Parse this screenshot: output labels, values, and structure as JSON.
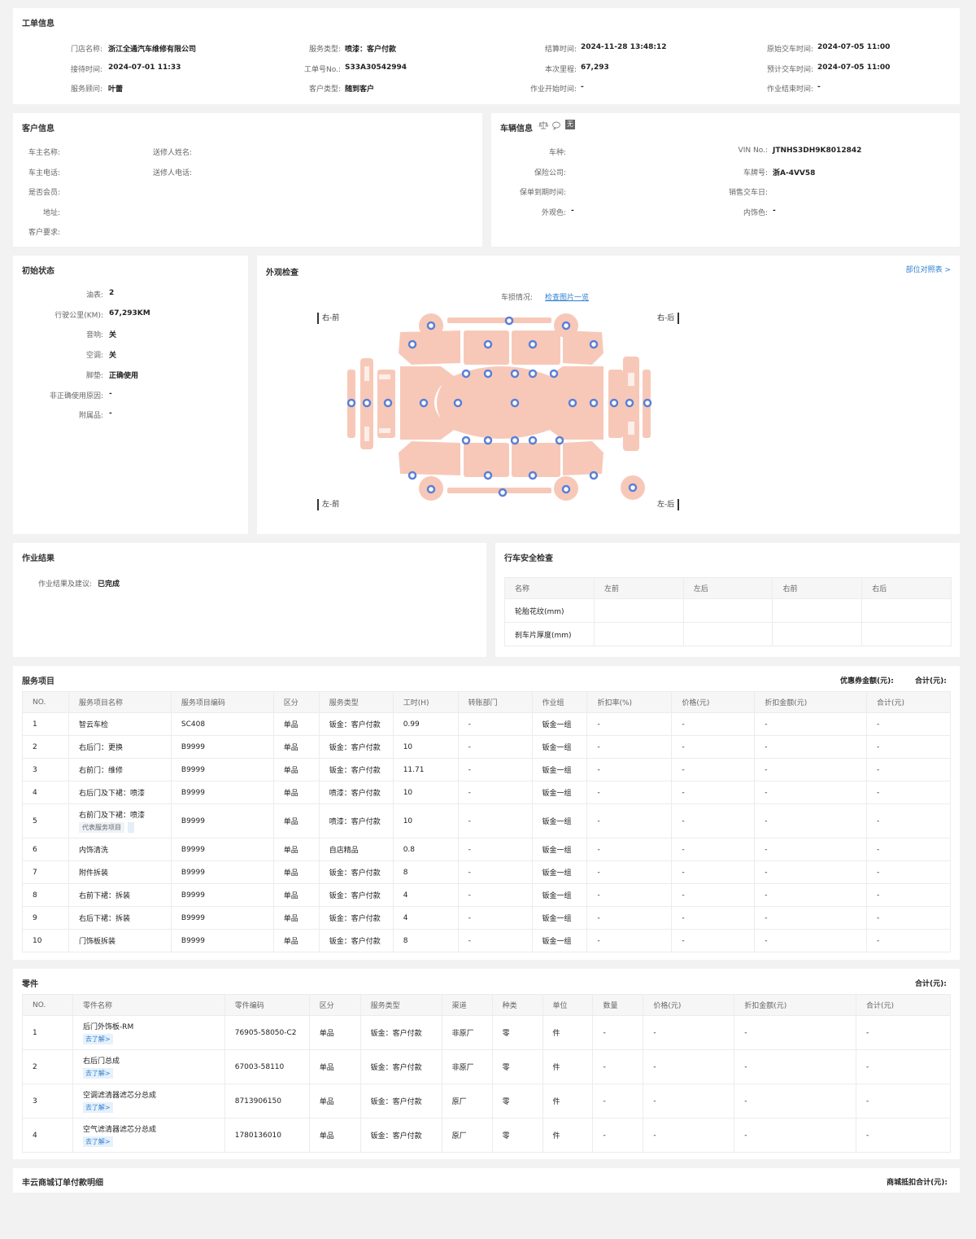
{
  "order": {
    "title": "工单信息",
    "fields": [
      {
        "label": "门店名称:",
        "value": "浙江全通汽车维修有限公司"
      },
      {
        "label": "服务类型:",
        "value": "喷漆：客户付款"
      },
      {
        "label": "结算时间:",
        "value": "2024-11-28 13:48:12"
      },
      {
        "label": "原始交车时间:",
        "value": "2024-07-05 11:00"
      },
      {
        "label": "接待时间:",
        "value": "2024-07-01 11:33"
      },
      {
        "label": "工单号No.:",
        "value": "S33A30542994"
      },
      {
        "label": "本次里程:",
        "value": "67,293"
      },
      {
        "label": "预计交车时间:",
        "value": "2024-07-05 11:00"
      },
      {
        "label": "服务顾问:",
        "value": "叶蕾"
      },
      {
        "label": "客户类型:",
        "value": "随到客户"
      },
      {
        "label": "作业开始时间:",
        "value": "-"
      },
      {
        "label": "作业结束时间:",
        "value": "-"
      }
    ]
  },
  "customer": {
    "title": "客户信息",
    "fields": [
      {
        "label": "车主名称:",
        "value": ""
      },
      {
        "label": "送修人姓名:",
        "value": ""
      },
      {
        "label": "车主电话:",
        "value": ""
      },
      {
        "label": "送修人电话:",
        "value": ""
      },
      {
        "label": "是否会员:",
        "value": ""
      },
      {
        "label": "地址:",
        "value": ""
      },
      {
        "label": "客户要求:",
        "value": ""
      }
    ]
  },
  "vehicle": {
    "title": "车辆信息",
    "badge": "无",
    "fields": [
      {
        "label": "车种:",
        "value": ""
      },
      {
        "label": "VIN No.:",
        "value": "JTNHS3DH9K8012842"
      },
      {
        "label": "保险公司:",
        "value": ""
      },
      {
        "label": "车牌号:",
        "value": "浙A-4VV58"
      },
      {
        "label": "保单到期时间:",
        "value": ""
      },
      {
        "label": "销售交车日:",
        "value": ""
      },
      {
        "label": "外观色:",
        "value": "-"
      },
      {
        "label": "内饰色:",
        "value": "-"
      }
    ]
  },
  "initial": {
    "title": "初始状态",
    "fields": [
      {
        "label": "油表:",
        "value": "2"
      },
      {
        "label": "行驶公里(KM):",
        "value": "67,293KM"
      },
      {
        "label": "音响:",
        "value": "关"
      },
      {
        "label": "空调:",
        "value": "关"
      },
      {
        "label": "脚垫:",
        "value": "正确使用"
      },
      {
        "label": "非正确使用原因:",
        "value": "-"
      },
      {
        "label": "附属品:",
        "value": "-"
      }
    ]
  },
  "exterior": {
    "title": "外观检查",
    "ref_link": "部位对照表 >",
    "damage_label": "车损情况:",
    "damage_link": "检查图片一览",
    "corners": {
      "fr": "右-前",
      "rr": "右-后",
      "fl": "左-前",
      "rl": "左-后"
    }
  },
  "result": {
    "title": "作业结果",
    "label": "作业结果及建议:",
    "value": "已完成"
  },
  "safety": {
    "title": "行车安全检查",
    "headers": [
      "名称",
      "左前",
      "左后",
      "右前",
      "右后"
    ],
    "rows": [
      [
        "轮胎花纹(mm)",
        "",
        "",
        "",
        ""
      ],
      [
        "刹车片厚度(mm)",
        "",
        "",
        "",
        ""
      ]
    ]
  },
  "services": {
    "title": "服务项目",
    "coupon_label": "优惠券金额(元):",
    "total_label": "合计(元):",
    "headers": [
      "NO.",
      "服务项目名称",
      "服务项目编码",
      "区分",
      "服务类型",
      "工时(H)",
      "转账部门",
      "作业组",
      "折扣率(%)",
      "价格(元)",
      "折扣金额(元)",
      "合计(元)"
    ],
    "rows": [
      {
        "no": "1",
        "name": "智云车检",
        "tag": "",
        "code": "SC408",
        "kind": "单品",
        "type": "钣金：客户付款",
        "hours": "0.99",
        "dept": "-",
        "group": "钣金一组",
        "rate": "-",
        "price": "-",
        "disc": "-",
        "total": "-"
      },
      {
        "no": "2",
        "name": "右后门：更换",
        "tag": "",
        "code": "B9999",
        "kind": "单品",
        "type": "钣金：客户付款",
        "hours": "10",
        "dept": "-",
        "group": "钣金一组",
        "rate": "-",
        "price": "-",
        "disc": "-",
        "total": "-"
      },
      {
        "no": "3",
        "name": "右前门：维修",
        "tag": "",
        "code": "B9999",
        "kind": "单品",
        "type": "钣金：客户付款",
        "hours": "11.71",
        "dept": "-",
        "group": "钣金一组",
        "rate": "-",
        "price": "-",
        "disc": "-",
        "total": "-"
      },
      {
        "no": "4",
        "name": "右后门及下裙：喷漆",
        "tag": "",
        "code": "B9999",
        "kind": "单品",
        "type": "喷漆：客户付款",
        "hours": "10",
        "dept": "-",
        "group": "钣金一组",
        "rate": "-",
        "price": "-",
        "disc": "-",
        "total": "-"
      },
      {
        "no": "5",
        "name": "右前门及下裙：喷漆",
        "tag": "代表服务项目",
        "code": "B9999",
        "kind": "单品",
        "type": "喷漆：客户付款",
        "hours": "10",
        "dept": "-",
        "group": "钣金一组",
        "rate": "-",
        "price": "-",
        "disc": "-",
        "total": "-"
      },
      {
        "no": "6",
        "name": "内饰清洗",
        "tag": "",
        "code": "B9999",
        "kind": "单品",
        "type": "自店精品",
        "hours": "0.8",
        "dept": "-",
        "group": "钣金一组",
        "rate": "-",
        "price": "-",
        "disc": "-",
        "total": "-"
      },
      {
        "no": "7",
        "name": "附件拆装",
        "tag": "",
        "code": "B9999",
        "kind": "单品",
        "type": "钣金：客户付款",
        "hours": "8",
        "dept": "-",
        "group": "钣金一组",
        "rate": "-",
        "price": "-",
        "disc": "-",
        "total": "-"
      },
      {
        "no": "8",
        "name": "右前下裙：拆装",
        "tag": "",
        "code": "B9999",
        "kind": "单品",
        "type": "钣金：客户付款",
        "hours": "4",
        "dept": "-",
        "group": "钣金一组",
        "rate": "-",
        "price": "-",
        "disc": "-",
        "total": "-"
      },
      {
        "no": "9",
        "name": "右后下裙：拆装",
        "tag": "",
        "code": "B9999",
        "kind": "单品",
        "type": "钣金：客户付款",
        "hours": "4",
        "dept": "-",
        "group": "钣金一组",
        "rate": "-",
        "price": "-",
        "disc": "-",
        "total": "-"
      },
      {
        "no": "10",
        "name": "门饰板拆装",
        "tag": "",
        "code": "B9999",
        "kind": "单品",
        "type": "钣金：客户付款",
        "hours": "8",
        "dept": "-",
        "group": "钣金一组",
        "rate": "-",
        "price": "-",
        "disc": "-",
        "total": "-"
      }
    ]
  },
  "parts": {
    "title": "零件",
    "total_label": "合计(元):",
    "headers": [
      "NO.",
      "零件名称",
      "零件编码",
      "区分",
      "服务类型",
      "渠道",
      "种类",
      "单位",
      "数量",
      "价格(元)",
      "折扣金额(元)",
      "合计(元)"
    ],
    "rows": [
      {
        "no": "1",
        "name": "后门外饰板-RM",
        "link": "去了解>",
        "code": "76905-58050-C2",
        "kind": "单品",
        "type": "钣金：客户付款",
        "channel": "非原厂",
        "cat": "零",
        "unit": "件",
        "qty": "-",
        "price": "-",
        "disc": "-",
        "total": "-"
      },
      {
        "no": "2",
        "name": "右后门总成",
        "link": "去了解>",
        "code": "67003-58110",
        "kind": "单品",
        "type": "钣金：客户付款",
        "channel": "非原厂",
        "cat": "零",
        "unit": "件",
        "qty": "-",
        "price": "-",
        "disc": "-",
        "total": "-"
      },
      {
        "no": "3",
        "name": "空调滤清器滤芯分总成",
        "link": "去了解>",
        "code": "8713906150",
        "kind": "单品",
        "type": "钣金：客户付款",
        "channel": "原厂",
        "cat": "零",
        "unit": "件",
        "qty": "-",
        "price": "-",
        "disc": "-",
        "total": "-"
      },
      {
        "no": "4",
        "name": "空气滤清器滤芯分总成",
        "link": "去了解>",
        "code": "1780136010",
        "kind": "单品",
        "type": "钣金：客户付款",
        "channel": "原厂",
        "cat": "零",
        "unit": "件",
        "qty": "-",
        "price": "-",
        "disc": "-",
        "total": "-"
      }
    ]
  },
  "mall": {
    "title": "丰云商城订单付款明细",
    "total_label": "商城抵扣合计(元):"
  },
  "colors": {
    "accent": "#2e7fd1",
    "car_fill": "#f7c8b8",
    "marker": "#5b7fd6"
  }
}
